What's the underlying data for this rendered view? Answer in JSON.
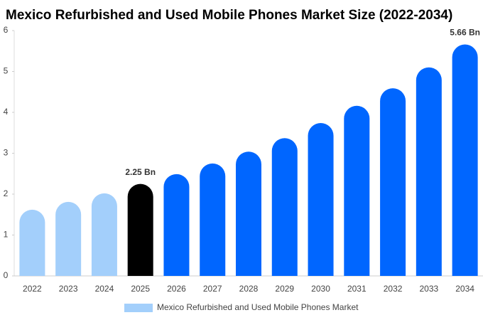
{
  "chart_data": {
    "type": "bar",
    "title": "Mexico Refurbished and Used Mobile Phones Market Size (2022-2034)",
    "categories": [
      "2022",
      "2023",
      "2024",
      "2025",
      "2026",
      "2027",
      "2028",
      "2029",
      "2030",
      "2031",
      "2032",
      "2033",
      "2034"
    ],
    "series": [
      {
        "name": "Mexico Refurbished and Used Mobile Phones Market",
        "color": "#a3cffb",
        "colors": [
          "#a3cffb",
          "#a3cffb",
          "#a3cffb",
          "#000000",
          "#0066ff",
          "#0066ff",
          "#0066ff",
          "#0066ff",
          "#0066ff",
          "#0066ff",
          "#0066ff",
          "#0066ff",
          "#0066ff"
        ],
        "values": [
          1.62,
          1.81,
          2.02,
          2.25,
          2.49,
          2.75,
          3.04,
          3.37,
          3.74,
          4.16,
          4.59,
          5.1,
          5.66
        ],
        "value_labels": [
          null,
          null,
          null,
          "2.25 Bn",
          null,
          null,
          null,
          null,
          null,
          null,
          null,
          null,
          "5.66 Bn"
        ]
      }
    ],
    "ylim": [
      0,
      6
    ],
    "yticks": [
      0,
      1,
      2,
      3,
      4,
      5,
      6
    ],
    "grid": false
  }
}
